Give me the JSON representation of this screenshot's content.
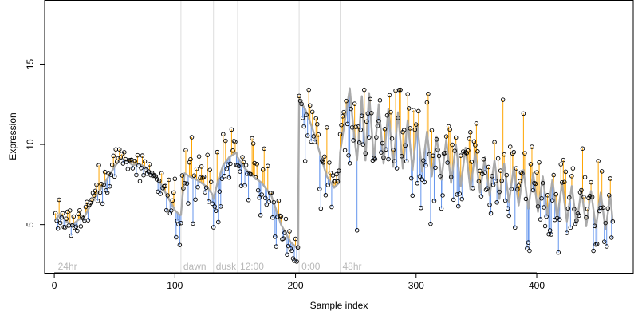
{
  "chart_data": {
    "type": "scatter",
    "title": "",
    "xlabel": "Sample index",
    "ylabel": "Expression",
    "xlim": [
      -8,
      480
    ],
    "ylim": [
      2.0,
      19.0
    ],
    "x_ticks": [
      0,
      100,
      200,
      300,
      400
    ],
    "y_ticks": [
      5,
      10,
      15
    ],
    "grid": false,
    "legend": "none",
    "colors": {
      "fitted_line": "#aaaaaa",
      "residual_positive": "#ffa500",
      "residual_negative": "#6495ed",
      "point_stroke": "#000000",
      "region_divider": "#dddddd",
      "region_label": "#b8b8b8"
    },
    "regions": [
      {
        "label": "24hr",
        "start": 1
      },
      {
        "label": "dawn",
        "start": 105
      },
      {
        "label": "dusk",
        "start": 132
      },
      {
        "label": "12:00",
        "start": 152
      },
      {
        "label": "0:00",
        "start": 203
      },
      {
        "label": "48hr",
        "start": 237
      }
    ],
    "anchors": {
      "fitted": [
        [
          1,
          5.3
        ],
        [
          5,
          5.7
        ],
        [
          10,
          5.2
        ],
        [
          15,
          5.0
        ],
        [
          20,
          5.3
        ],
        [
          25,
          5.5
        ],
        [
          30,
          6.2
        ],
        [
          35,
          6.8
        ],
        [
          40,
          7.4
        ],
        [
          45,
          8.0
        ],
        [
          50,
          8.6
        ],
        [
          55,
          9.1
        ],
        [
          60,
          9.0
        ],
        [
          65,
          8.7
        ],
        [
          70,
          8.8
        ],
        [
          75,
          8.6
        ],
        [
          80,
          8.3
        ],
        [
          85,
          8.0
        ],
        [
          90,
          7.3
        ],
        [
          95,
          6.6
        ],
        [
          100,
          5.9
        ],
        [
          104,
          5.6
        ],
        [
          105,
          5.6
        ],
        [
          108,
          8.2
        ],
        [
          112,
          8.0
        ],
        [
          118,
          7.8
        ],
        [
          124,
          7.5
        ],
        [
          128,
          7.2
        ],
        [
          131,
          6.9
        ],
        [
          132,
          6.6
        ],
        [
          136,
          7.8
        ],
        [
          140,
          8.7
        ],
        [
          145,
          9.2
        ],
        [
          151,
          9.5
        ],
        [
          152,
          9.2
        ],
        [
          158,
          8.5
        ],
        [
          165,
          8.0
        ],
        [
          172,
          7.6
        ],
        [
          180,
          6.8
        ],
        [
          188,
          5.0
        ],
        [
          196,
          3.9
        ],
        [
          202,
          3.5
        ],
        [
          203,
          12.8
        ],
        [
          208,
          12.2
        ],
        [
          214,
          11.0
        ],
        [
          220,
          9.5
        ],
        [
          226,
          8.0
        ],
        [
          232,
          7.3
        ],
        [
          236,
          7.6
        ],
        [
          237,
          9.5
        ],
        [
          242,
          12.0
        ],
        [
          245,
          13.5
        ],
        [
          248,
          11.0
        ],
        [
          251,
          9.0
        ],
        [
          255,
          13.0
        ],
        [
          258,
          9.0
        ],
        [
          261,
          13.2
        ],
        [
          265,
          9.0
        ],
        [
          269,
          12.5
        ],
        [
          273,
          8.8
        ],
        [
          277,
          12.2
        ],
        [
          281,
          8.6
        ],
        [
          285,
          12.0
        ],
        [
          289,
          8.5
        ],
        [
          293,
          11.5
        ],
        [
          297,
          8.4
        ],
        [
          301,
          11.2
        ],
        [
          305,
          8.3
        ],
        [
          309,
          10.8
        ],
        [
          313,
          8.0
        ],
        [
          317,
          10.5
        ],
        [
          321,
          7.8
        ],
        [
          325,
          10.3
        ],
        [
          329,
          7.6
        ],
        [
          333,
          10.0
        ],
        [
          337,
          7.4
        ],
        [
          341,
          9.8
        ],
        [
          345,
          7.2
        ],
        [
          349,
          9.5
        ],
        [
          353,
          7.0
        ],
        [
          357,
          9.2
        ],
        [
          361,
          6.8
        ],
        [
          365,
          9.0
        ],
        [
          369,
          6.6
        ],
        [
          373,
          8.8
        ],
        [
          377,
          6.4
        ],
        [
          381,
          8.6
        ],
        [
          385,
          6.2
        ],
        [
          389,
          8.4
        ],
        [
          393,
          6.0
        ],
        [
          397,
          8.2
        ],
        [
          401,
          5.8
        ],
        [
          405,
          8.0
        ],
        [
          409,
          5.6
        ],
        [
          413,
          7.8
        ],
        [
          417,
          5.4
        ],
        [
          421,
          7.6
        ],
        [
          425,
          5.2
        ],
        [
          429,
          7.4
        ],
        [
          433,
          5.0
        ],
        [
          437,
          7.2
        ],
        [
          441,
          4.9
        ],
        [
          445,
          7.1
        ],
        [
          449,
          4.8
        ],
        [
          453,
          7.0
        ],
        [
          457,
          4.7
        ],
        [
          461,
          6.8
        ],
        [
          463,
          5.2
        ]
      ],
      "observed": [
        [
          1,
          5.5
        ],
        [
          5,
          6.1
        ],
        [
          10,
          5.5
        ],
        [
          15,
          5.1
        ],
        [
          20,
          5.4
        ],
        [
          25,
          5.6
        ],
        [
          30,
          6.3
        ],
        [
          35,
          6.9
        ],
        [
          40,
          7.5
        ],
        [
          45,
          8.1
        ],
        [
          50,
          8.8
        ],
        [
          55,
          9.3
        ],
        [
          60,
          9.1
        ],
        [
          65,
          8.8
        ],
        [
          70,
          8.9
        ],
        [
          75,
          8.6
        ],
        [
          80,
          8.4
        ],
        [
          85,
          8.0
        ],
        [
          90,
          7.3
        ],
        [
          95,
          6.6
        ],
        [
          100,
          5.9
        ],
        [
          104,
          5.6
        ],
        [
          105,
          5.7
        ],
        [
          108,
          8.4
        ],
        [
          112,
          8.1
        ],
        [
          118,
          7.9
        ],
        [
          124,
          7.6
        ],
        [
          128,
          7.2
        ],
        [
          131,
          6.8
        ],
        [
          132,
          6.7
        ],
        [
          136,
          7.9
        ],
        [
          140,
          8.8
        ],
        [
          145,
          9.3
        ],
        [
          151,
          9.6
        ],
        [
          152,
          9.3
        ],
        [
          158,
          8.6
        ],
        [
          165,
          8.1
        ],
        [
          172,
          7.6
        ],
        [
          180,
          6.7
        ],
        [
          188,
          4.9
        ],
        [
          196,
          3.8
        ],
        [
          202,
          3.5
        ],
        [
          203,
          12.9
        ],
        [
          208,
          12.3
        ],
        [
          214,
          11.0
        ],
        [
          220,
          9.4
        ],
        [
          226,
          7.9
        ],
        [
          232,
          7.3
        ],
        [
          236,
          7.7
        ],
        [
          237,
          9.6
        ],
        [
          242,
          12.1
        ],
        [
          245,
          13.3
        ],
        [
          248,
          10.8
        ],
        [
          251,
          9.1
        ],
        [
          255,
          12.6
        ],
        [
          258,
          9.2
        ],
        [
          261,
          12.8
        ],
        [
          265,
          9.1
        ],
        [
          269,
          12.2
        ],
        [
          273,
          9.0
        ],
        [
          277,
          11.9
        ],
        [
          281,
          8.8
        ],
        [
          285,
          11.7
        ],
        [
          289,
          8.6
        ],
        [
          293,
          11.3
        ],
        [
          297,
          8.5
        ],
        [
          301,
          11.0
        ],
        [
          305,
          8.3
        ],
        [
          309,
          10.6
        ],
        [
          313,
          8.1
        ],
        [
          317,
          10.3
        ],
        [
          321,
          7.9
        ],
        [
          325,
          10.1
        ],
        [
          329,
          7.7
        ],
        [
          333,
          9.8
        ],
        [
          337,
          7.5
        ],
        [
          341,
          9.6
        ],
        [
          345,
          7.3
        ],
        [
          349,
          9.3
        ],
        [
          353,
          7.1
        ],
        [
          357,
          9.0
        ],
        [
          361,
          6.9
        ],
        [
          365,
          8.8
        ],
        [
          369,
          6.7
        ],
        [
          373,
          8.6
        ],
        [
          377,
          6.5
        ],
        [
          381,
          8.4
        ],
        [
          385,
          6.3
        ],
        [
          389,
          8.2
        ],
        [
          393,
          6.1
        ],
        [
          397,
          8.0
        ],
        [
          401,
          5.9
        ],
        [
          405,
          7.8
        ],
        [
          409,
          5.7
        ],
        [
          413,
          7.6
        ],
        [
          417,
          5.5
        ],
        [
          421,
          7.4
        ],
        [
          425,
          5.3
        ],
        [
          429,
          7.2
        ],
        [
          433,
          5.1
        ],
        [
          437,
          7.0
        ],
        [
          441,
          5.0
        ],
        [
          445,
          6.9
        ],
        [
          449,
          4.9
        ],
        [
          453,
          6.8
        ],
        [
          457,
          4.8
        ],
        [
          461,
          6.6
        ],
        [
          463,
          5.3
        ]
      ]
    }
  }
}
